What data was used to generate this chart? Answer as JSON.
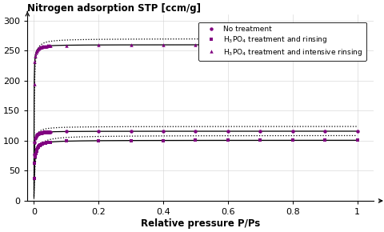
{
  "title": "Nitrogen adsorption STP [ccm/g]",
  "xlabel": "Relative pressure P/Ps",
  "xlim": [
    -0.02,
    1.05
  ],
  "ylim": [
    0,
    310
  ],
  "yticks": [
    0,
    50,
    100,
    150,
    200,
    250,
    300
  ],
  "xticks": [
    0,
    0.2,
    0.4,
    0.6,
    0.8,
    1.0
  ],
  "xticklabels": [
    "0",
    "0.2",
    "0.4",
    "0.6",
    "0.8",
    "1"
  ],
  "series": [
    {
      "label": "No treatment",
      "qmax_solid": 116,
      "K_solid": 2000,
      "qmax_dot": 124,
      "K_dot": 800,
      "marker": "o"
    },
    {
      "label": "H$_3$PO$_4$ treatment and rinsing",
      "qmax_solid": 101,
      "K_solid": 600,
      "qmax_dot": 109,
      "K_dot": 300,
      "marker": "s"
    },
    {
      "label": "H$_3$PO$_4$ treatment and intensive rinsing",
      "qmax_solid": 260,
      "K_solid": 3000,
      "qmax_dot": 270,
      "K_dot": 1200,
      "marker": "^"
    }
  ],
  "marker_color": "#800080",
  "line_color": "#000000",
  "bg_color": "#FFFFFF",
  "grid_color": "#CCCCCC"
}
